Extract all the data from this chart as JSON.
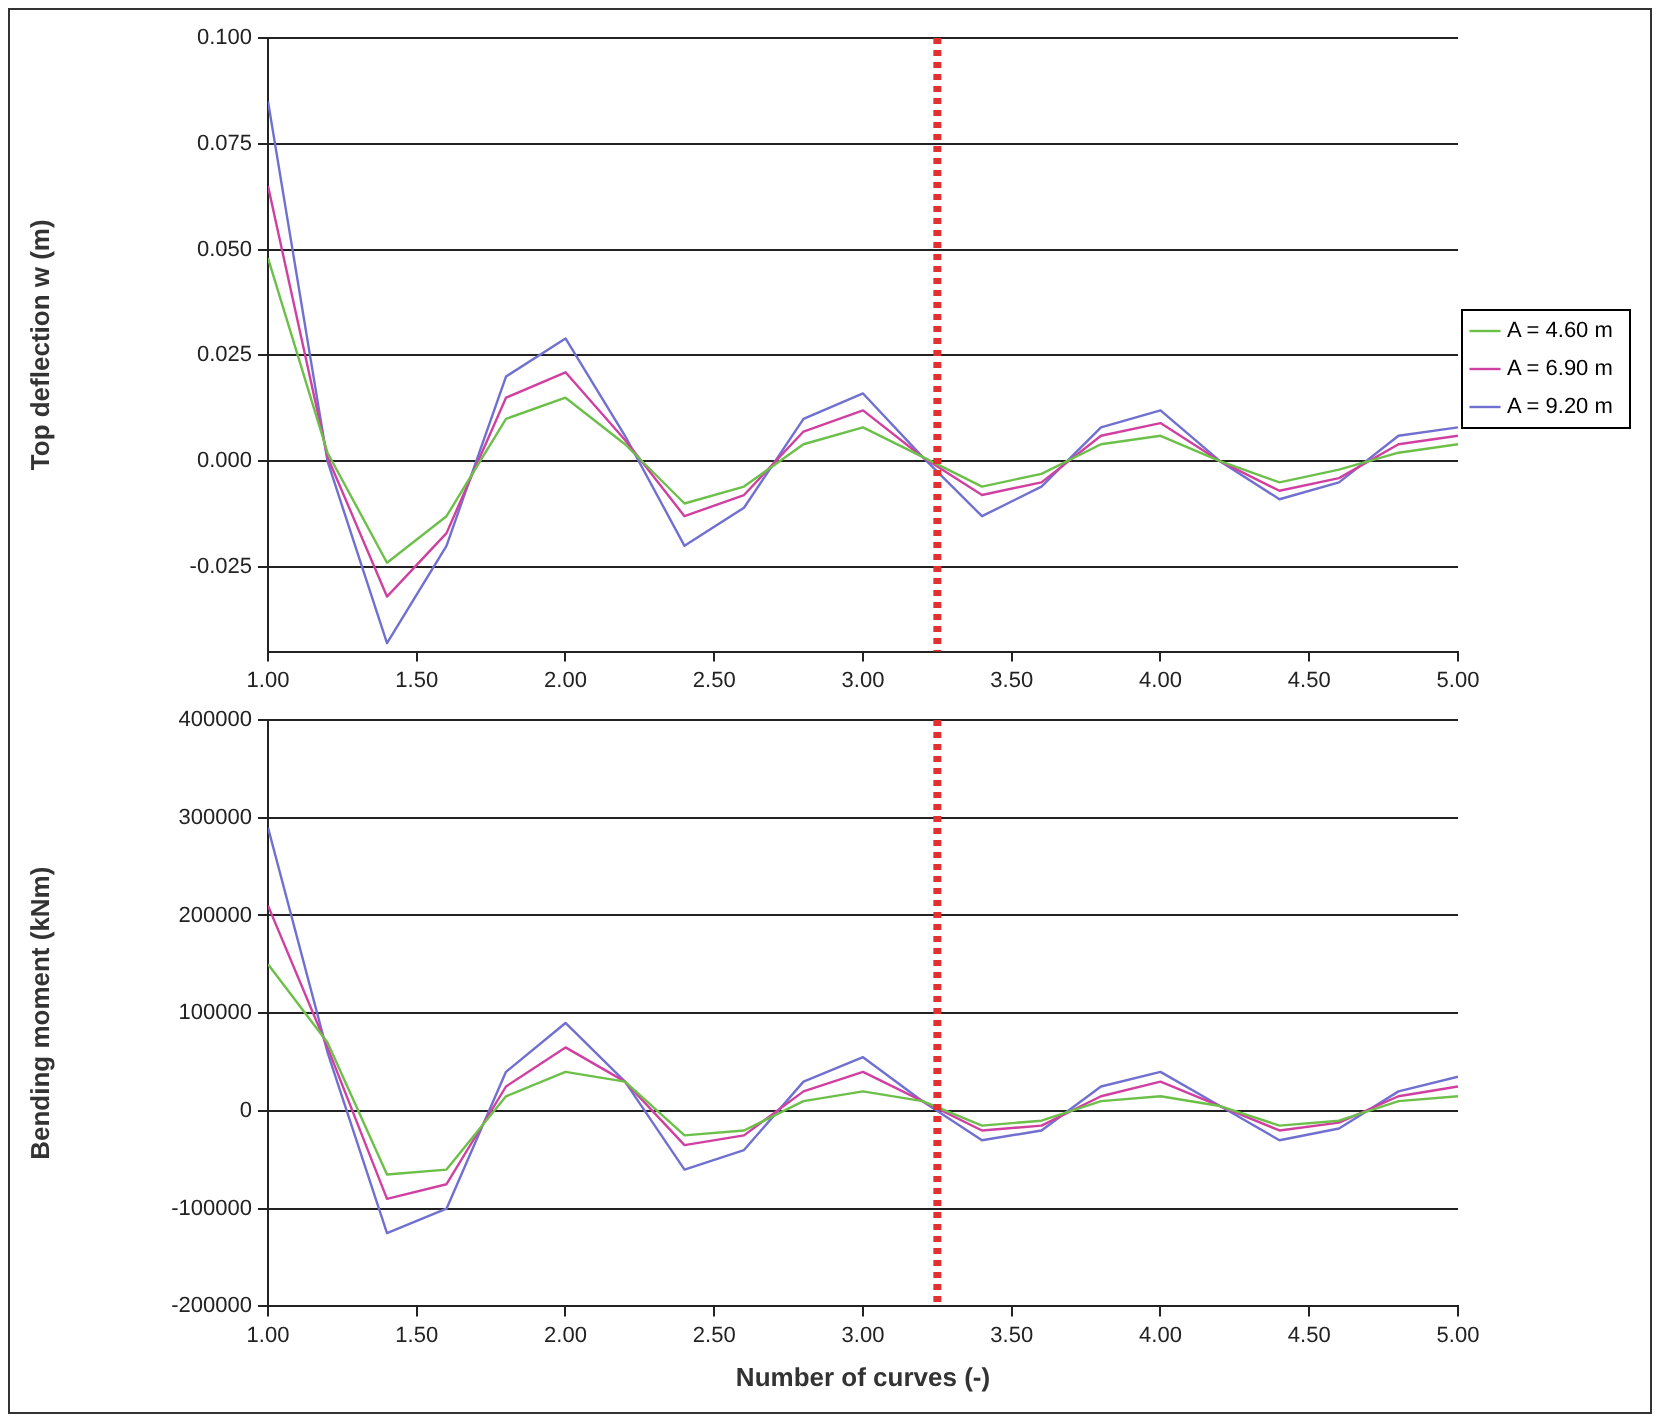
{
  "chart_data": [
    {
      "type": "line",
      "ylabel": "Top deflection w (m)",
      "x": [
        1.0,
        1.2,
        1.4,
        1.6,
        1.8,
        2.0,
        2.2,
        2.4,
        2.6,
        2.8,
        3.0,
        3.2,
        3.4,
        3.6,
        3.8,
        4.0,
        4.2,
        4.4,
        4.6,
        4.8,
        5.0
      ],
      "series": [
        {
          "name": "A = 4.60 m",
          "color": "#6cc04a",
          "values": [
            0.048,
            0.002,
            -0.024,
            -0.013,
            0.01,
            0.015,
            0.004,
            -0.01,
            -0.006,
            0.004,
            0.008,
            0.001,
            -0.006,
            -0.003,
            0.004,
            0.006,
            0.0,
            -0.005,
            -0.002,
            0.002,
            0.004
          ]
        },
        {
          "name": "A = 6.90 m",
          "color": "#d040a0",
          "values": [
            0.065,
            0.001,
            -0.032,
            -0.017,
            0.015,
            0.021,
            0.005,
            -0.013,
            -0.008,
            0.007,
            0.012,
            0.001,
            -0.008,
            -0.005,
            0.006,
            0.009,
            0.0,
            -0.007,
            -0.004,
            0.004,
            0.006
          ]
        },
        {
          "name": "A = 9.20 m",
          "color": "#7070d0",
          "values": [
            0.085,
            0.0,
            -0.043,
            -0.02,
            0.02,
            0.029,
            0.006,
            -0.02,
            -0.011,
            0.01,
            0.016,
            0.001,
            -0.013,
            -0.006,
            0.008,
            0.012,
            0.0,
            -0.009,
            -0.005,
            0.006,
            0.008
          ]
        }
      ],
      "xlim": [
        1,
        5
      ],
      "xticks": [
        {
          "value": 1,
          "label": "1.00"
        },
        {
          "value": 1.5,
          "label": "1.50"
        },
        {
          "value": 2,
          "label": "2.00"
        },
        {
          "value": 2.5,
          "label": "2.50"
        },
        {
          "value": 3,
          "label": "3.00"
        },
        {
          "value": 3.5,
          "label": "3.50"
        },
        {
          "value": 4,
          "label": "4.00"
        },
        {
          "value": 4.5,
          "label": "4.50"
        },
        {
          "value": 5,
          "label": "5.00"
        }
      ],
      "ylim": [
        -0.045,
        0.1
      ],
      "yticks": [
        {
          "value": -0.025,
          "label": "-0.025"
        },
        {
          "value": 0,
          "label": "0.000"
        },
        {
          "value": 0.025,
          "label": "0.025"
        },
        {
          "value": 0.05,
          "label": "0.050"
        },
        {
          "value": 0.075,
          "label": "0.075"
        },
        {
          "value": 0.1,
          "label": "0.100"
        }
      ],
      "grid": "y",
      "legend": "right",
      "marker": "none",
      "line_style": "solid",
      "ref_lines": [
        {
          "axis": "x",
          "value": 3.25,
          "color": "#e03030",
          "line_style": "dotted"
        }
      ]
    },
    {
      "type": "line",
      "ylabel": "Bending moment (kNm)",
      "xlabel": "Number of curves (-)",
      "x": [
        1.0,
        1.2,
        1.4,
        1.6,
        1.8,
        2.0,
        2.2,
        2.4,
        2.6,
        2.8,
        3.0,
        3.2,
        3.4,
        3.6,
        3.8,
        4.0,
        4.2,
        4.4,
        4.6,
        4.8,
        5.0
      ],
      "series": [
        {
          "color": "#6cc04a",
          "values": [
            150000,
            70000,
            -65000,
            -60000,
            15000,
            40000,
            30000,
            -25000,
            -20000,
            10000,
            20000,
            10000,
            -15000,
            -10000,
            10000,
            15000,
            5000,
            -15000,
            -10000,
            10000,
            15000
          ]
        },
        {
          "color": "#d040a0",
          "values": [
            210000,
            65000,
            -90000,
            -75000,
            25000,
            65000,
            30000,
            -35000,
            -25000,
            20000,
            40000,
            10000,
            -20000,
            -15000,
            15000,
            30000,
            5000,
            -20000,
            -12000,
            15000,
            25000
          ]
        },
        {
          "color": "#7070d0",
          "values": [
            290000,
            60000,
            -125000,
            -100000,
            40000,
            90000,
            30000,
            -60000,
            -40000,
            30000,
            55000,
            10000,
            -30000,
            -20000,
            25000,
            40000,
            5000,
            -30000,
            -18000,
            20000,
            35000
          ]
        }
      ],
      "xlim": [
        1,
        5
      ],
      "xticks": [
        {
          "value": 1,
          "label": "1.00"
        },
        {
          "value": 1.5,
          "label": "1.50"
        },
        {
          "value": 2,
          "label": "2.00"
        },
        {
          "value": 2.5,
          "label": "2.50"
        },
        {
          "value": 3,
          "label": "3.00"
        },
        {
          "value": 3.5,
          "label": "3.50"
        },
        {
          "value": 4,
          "label": "4.00"
        },
        {
          "value": 4.5,
          "label": "4.50"
        },
        {
          "value": 5,
          "label": "5.00"
        }
      ],
      "ylim": [
        -200000,
        400000
      ],
      "yticks": [
        -200000,
        -100000,
        0,
        100000,
        200000,
        300000,
        400000
      ],
      "grid": "y",
      "marker": "none",
      "line_style": "solid",
      "ref_lines": [
        {
          "axis": "x",
          "value": 3.25,
          "color": "#e03030",
          "line_style": "dotted"
        }
      ]
    }
  ]
}
